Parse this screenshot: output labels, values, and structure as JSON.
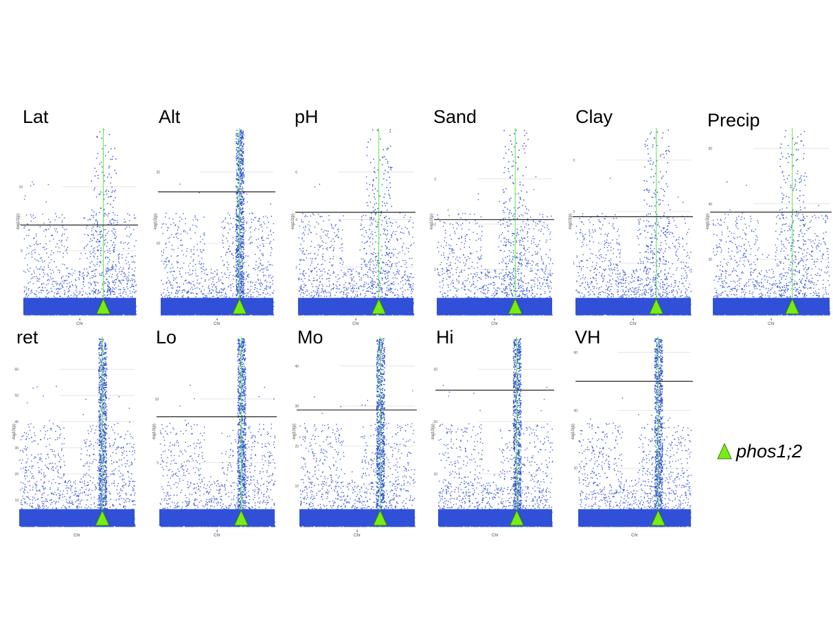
{
  "colors": {
    "points": "#3050d8",
    "gene_line": "#66ee55",
    "marker_fill": "#77ee11",
    "marker_stroke": "#3a7a1a",
    "threshold": "#222222",
    "grid": "#e4e4e4"
  },
  "legend": {
    "label": "phos1;2",
    "marker": "green-triangle-icon"
  },
  "chart_data": [
    {
      "type": "scatter",
      "title": "Lat",
      "xlabel": "Chr",
      "ylabel": "-log10(p)",
      "ylim": [
        0,
        14.5
      ],
      "yticks": [
        5,
        10
      ],
      "xticks": [
        "4"
      ],
      "threshold": 7,
      "gene_position": 0.71,
      "peak_height": 14.5
    },
    {
      "type": "scatter",
      "title": "Alt",
      "xlabel": "Chr",
      "ylabel": "-log10(p)",
      "ylim": [
        0,
        26
      ],
      "yticks": [
        10,
        20
      ],
      "xticks": [
        "4"
      ],
      "threshold": 17.2,
      "gene_position": 0.7,
      "peak_height": 26
    },
    {
      "type": "scatter",
      "title": "pH",
      "xlabel": "Chr",
      "ylabel": "-log10(p)",
      "ylim": [
        0,
        7.8
      ],
      "yticks": [
        2,
        4,
        6
      ],
      "xticks": [
        "4"
      ],
      "threshold": 4.3,
      "gene_position": 0.7,
      "peak_height": 7.8
    },
    {
      "type": "scatter",
      "title": "Sand",
      "xlabel": "Chr",
      "ylabel": "-log10(p)",
      "ylim": [
        0,
        4.1
      ],
      "yticks": [
        1,
        2,
        3
      ],
      "xticks": [
        "4"
      ],
      "threshold": 2.1,
      "gene_position": 0.68,
      "peak_height": 4.1
    },
    {
      "type": "scatter",
      "title": "Clay",
      "xlabel": "Chr",
      "ylabel": "-log10(p)",
      "ylim": [
        0,
        3.6
      ],
      "yticks": [
        1,
        2,
        3
      ],
      "xticks": [
        "4"
      ],
      "threshold": 1.9,
      "gene_position": 0.7,
      "peak_height": 3.6
    },
    {
      "type": "scatter",
      "title": "Precip",
      "xlabel": "Chr",
      "ylabel": "-log10(p)",
      "ylim": [
        0,
        67
      ],
      "yticks": [
        20,
        40,
        60
      ],
      "xticks": [
        "4"
      ],
      "threshold": 37,
      "gene_position": 0.68,
      "peak_height": 67
    },
    {
      "type": "scatter",
      "title": "ret",
      "xlabel": "Chr",
      "ylabel": "-log10(p)",
      "ylim": [
        0,
        72
      ],
      "yticks": [
        10,
        20,
        30,
        40,
        50,
        60
      ],
      "xticks": [],
      "threshold": null,
      "gene_position": 0.72,
      "peak_height": 72
    },
    {
      "type": "scatter",
      "title": "Lo",
      "xlabel": "Chr",
      "ylabel": "-log10(p)",
      "ylim": [
        0,
        14.8
      ],
      "yticks": [
        5,
        10
      ],
      "xticks": [
        "4"
      ],
      "threshold": 8.6,
      "gene_position": 0.71,
      "peak_height": 14.8
    },
    {
      "type": "scatter",
      "title": "Mo",
      "xlabel": "Chr",
      "ylabel": "-log10(p)",
      "ylim": [
        0,
        47
      ],
      "yticks": [
        10,
        20,
        30,
        40
      ],
      "xticks": [
        "4"
      ],
      "threshold": 29,
      "gene_position": 0.7,
      "peak_height": 47
    },
    {
      "type": "scatter",
      "title": "Hi",
      "xlabel": "Chr",
      "ylabel": "-log10(p)",
      "ylim": [
        0,
        36
      ],
      "yticks": [
        10,
        20,
        30
      ],
      "xticks": [],
      "threshold": 26,
      "gene_position": 0.69,
      "peak_height": 36
    },
    {
      "type": "scatter",
      "title": "VH",
      "xlabel": "Chr",
      "ylabel": "-log10(p)",
      "ylim": [
        0,
        65
      ],
      "yticks": [
        20,
        40,
        60
      ],
      "xticks": [],
      "threshold": 50,
      "gene_position": 0.71,
      "peak_height": 65
    }
  ]
}
